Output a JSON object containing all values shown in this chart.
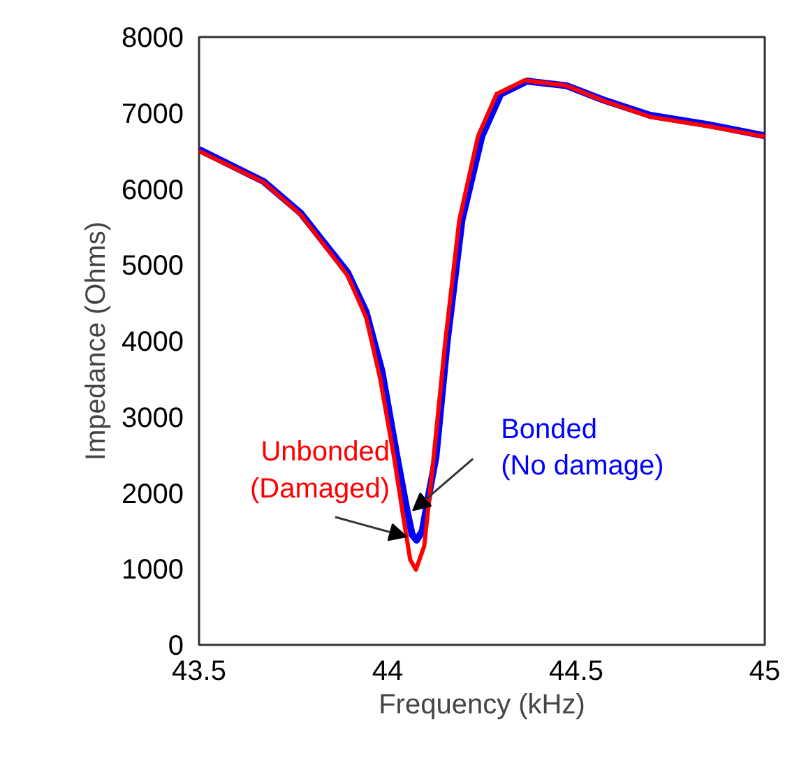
{
  "chart_data": {
    "type": "line",
    "xlabel": "Frequency (kHz)",
    "ylabel": "Impedance (Ohms)",
    "xlim": [
      43.5,
      45
    ],
    "xticks": [
      43.5,
      44,
      44.5,
      45
    ],
    "ylim": [
      0,
      8000
    ],
    "yticks": [
      0,
      1000,
      2000,
      3000,
      4000,
      5000,
      6000,
      7000,
      8000
    ],
    "grid": false,
    "series": [
      {
        "color": "#0000ff",
        "x": [
          43.5,
          43.671,
          43.77,
          43.894,
          43.943,
          43.985,
          44.025,
          44.05,
          44.065,
          44.077,
          44.092,
          44.11,
          44.128,
          44.158,
          44.197,
          44.25,
          44.3,
          44.37,
          44.474,
          44.573,
          44.696,
          44.857,
          45.0
        ],
        "values": [
          6520,
          6100,
          5680,
          4900,
          4380,
          3600,
          2470,
          1800,
          1450,
          1380,
          1500,
          2000,
          2470,
          4000,
          5590,
          6700,
          7250,
          7420,
          7360,
          7170,
          6970,
          6840,
          6700
        ]
      },
      {
        "color": "#ff0000",
        "x": [
          43.5,
          43.671,
          43.77,
          43.894,
          43.943,
          43.98,
          44.017,
          44.042,
          44.06,
          44.075,
          44.097,
          44.122,
          44.153,
          44.19,
          44.24,
          44.289,
          44.363,
          44.474,
          44.573,
          44.696,
          44.857,
          45.0
        ],
        "values": [
          6500,
          6090,
          5660,
          4860,
          4310,
          3510,
          2470,
          1670,
          1120,
          990,
          1300,
          2470,
          4000,
          5590,
          6700,
          7250,
          7430,
          7360,
          7160,
          6950,
          6820,
          6690
        ]
      }
    ],
    "annotations": [
      {
        "text": "Unbonded\n(Damaged)",
        "x": 44.05,
        "y": 1425
      },
      {
        "text": "Bonded\n(No damage)",
        "x": 44.067,
        "y": 1770
      }
    ]
  }
}
